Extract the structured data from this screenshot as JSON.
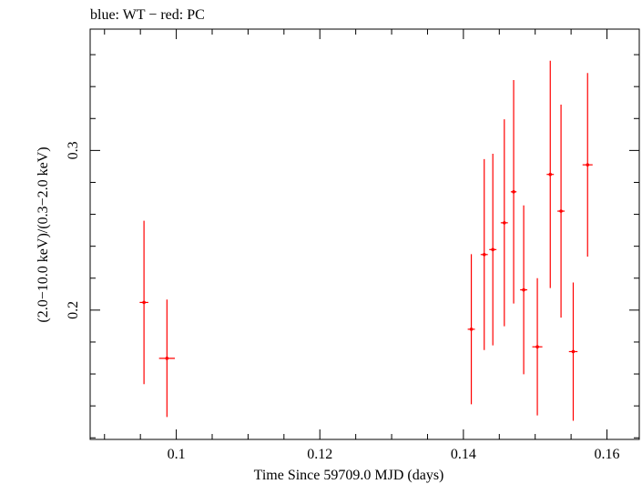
{
  "chart_data": {
    "type": "scatter",
    "title": "blue: WT − red: PC",
    "xlabel": "Time Since 59709.0 MJD (days)",
    "ylabel": "(2.0−10.0 keV)/(0.3−2.0 keV)",
    "xlim": [
      0.088,
      0.1645
    ],
    "ylim": [
      0.119,
      0.376
    ],
    "x_ticks": [
      0.1,
      0.12,
      0.14,
      0.16
    ],
    "x_tick_labels": [
      "0.1",
      "0.12",
      "0.14",
      "0.16"
    ],
    "y_ticks": [
      0.2,
      0.3
    ],
    "y_tick_labels": [
      "0.2",
      "0.3"
    ],
    "grid": false,
    "series": [
      {
        "color": "#ff0000",
        "points": [
          {
            "x": 0.0955,
            "xerr": 0.0006,
            "y": 0.2048,
            "yerr_low": 0.0512,
            "yerr_high": 0.0512
          },
          {
            "x": 0.0987,
            "xerr": 0.0011,
            "y": 0.1698,
            "yerr_low": 0.0368,
            "yerr_high": 0.0368
          },
          {
            "x": 0.1411,
            "xerr": 0.0005,
            "y": 0.188,
            "yerr_low": 0.047,
            "yerr_high": 0.047
          },
          {
            "x": 0.1429,
            "xerr": 0.0005,
            "y": 0.2348,
            "yerr_low": 0.0598,
            "yerr_high": 0.0598
          },
          {
            "x": 0.1441,
            "xerr": 0.0005,
            "y": 0.2379,
            "yerr_low": 0.06,
            "yerr_high": 0.06
          },
          {
            "x": 0.1457,
            "xerr": 0.0005,
            "y": 0.2547,
            "yerr_low": 0.0648,
            "yerr_high": 0.0648
          },
          {
            "x": 0.147,
            "xerr": 0.0004,
            "y": 0.2741,
            "yerr_low": 0.07,
            "yerr_high": 0.07
          },
          {
            "x": 0.1484,
            "xerr": 0.0005,
            "y": 0.2127,
            "yerr_low": 0.0529,
            "yerr_high": 0.0529
          },
          {
            "x": 0.1503,
            "xerr": 0.0007,
            "y": 0.177,
            "yerr_low": 0.043,
            "yerr_high": 0.043
          },
          {
            "x": 0.1521,
            "xerr": 0.0005,
            "y": 0.285,
            "yerr_low": 0.0712,
            "yerr_high": 0.0712
          },
          {
            "x": 0.1536,
            "xerr": 0.0005,
            "y": 0.262,
            "yerr_low": 0.0667,
            "yerr_high": 0.0667
          },
          {
            "x": 0.1553,
            "xerr": 0.0006,
            "y": 0.174,
            "yerr_low": 0.0433,
            "yerr_high": 0.0433
          },
          {
            "x": 0.1573,
            "xerr": 0.0007,
            "y": 0.291,
            "yerr_low": 0.0575,
            "yerr_high": 0.0575
          }
        ]
      }
    ]
  }
}
